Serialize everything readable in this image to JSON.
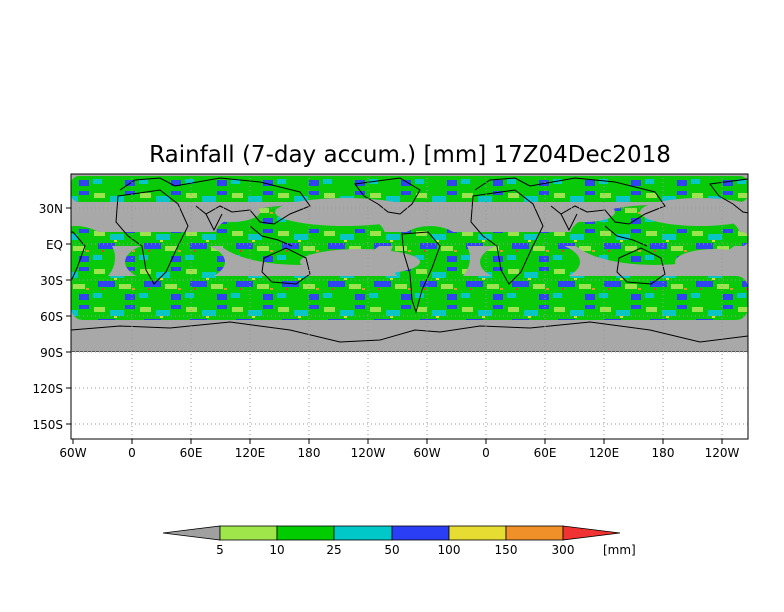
{
  "title": "Rainfall (7-day accum.) [mm] 17Z04Dec2018",
  "y_ticks": [
    "30N",
    "EQ",
    "30S",
    "60S",
    "90S",
    "120S",
    "150S"
  ],
  "x_ticks": [
    "60W",
    "0",
    "60E",
    "120E",
    "180",
    "120W",
    "60W",
    "0",
    "60E",
    "120E",
    "180",
    "120W"
  ],
  "colorbar": {
    "labels": [
      "5",
      "10",
      "25",
      "50",
      "100",
      "150",
      "300"
    ],
    "unit": "[mm]",
    "colors": [
      "#a0a0a0",
      "#9fe64b",
      "#00cc00",
      "#00c8c8",
      "#2a3ff5",
      "#e6dc32",
      "#f09028",
      "#f03232"
    ]
  },
  "colors": {
    "ocean_no_rain": "#a8a8a8",
    "antarctica": "#a8a8a8",
    "coast": "#000000",
    "grid": "#999999"
  }
}
